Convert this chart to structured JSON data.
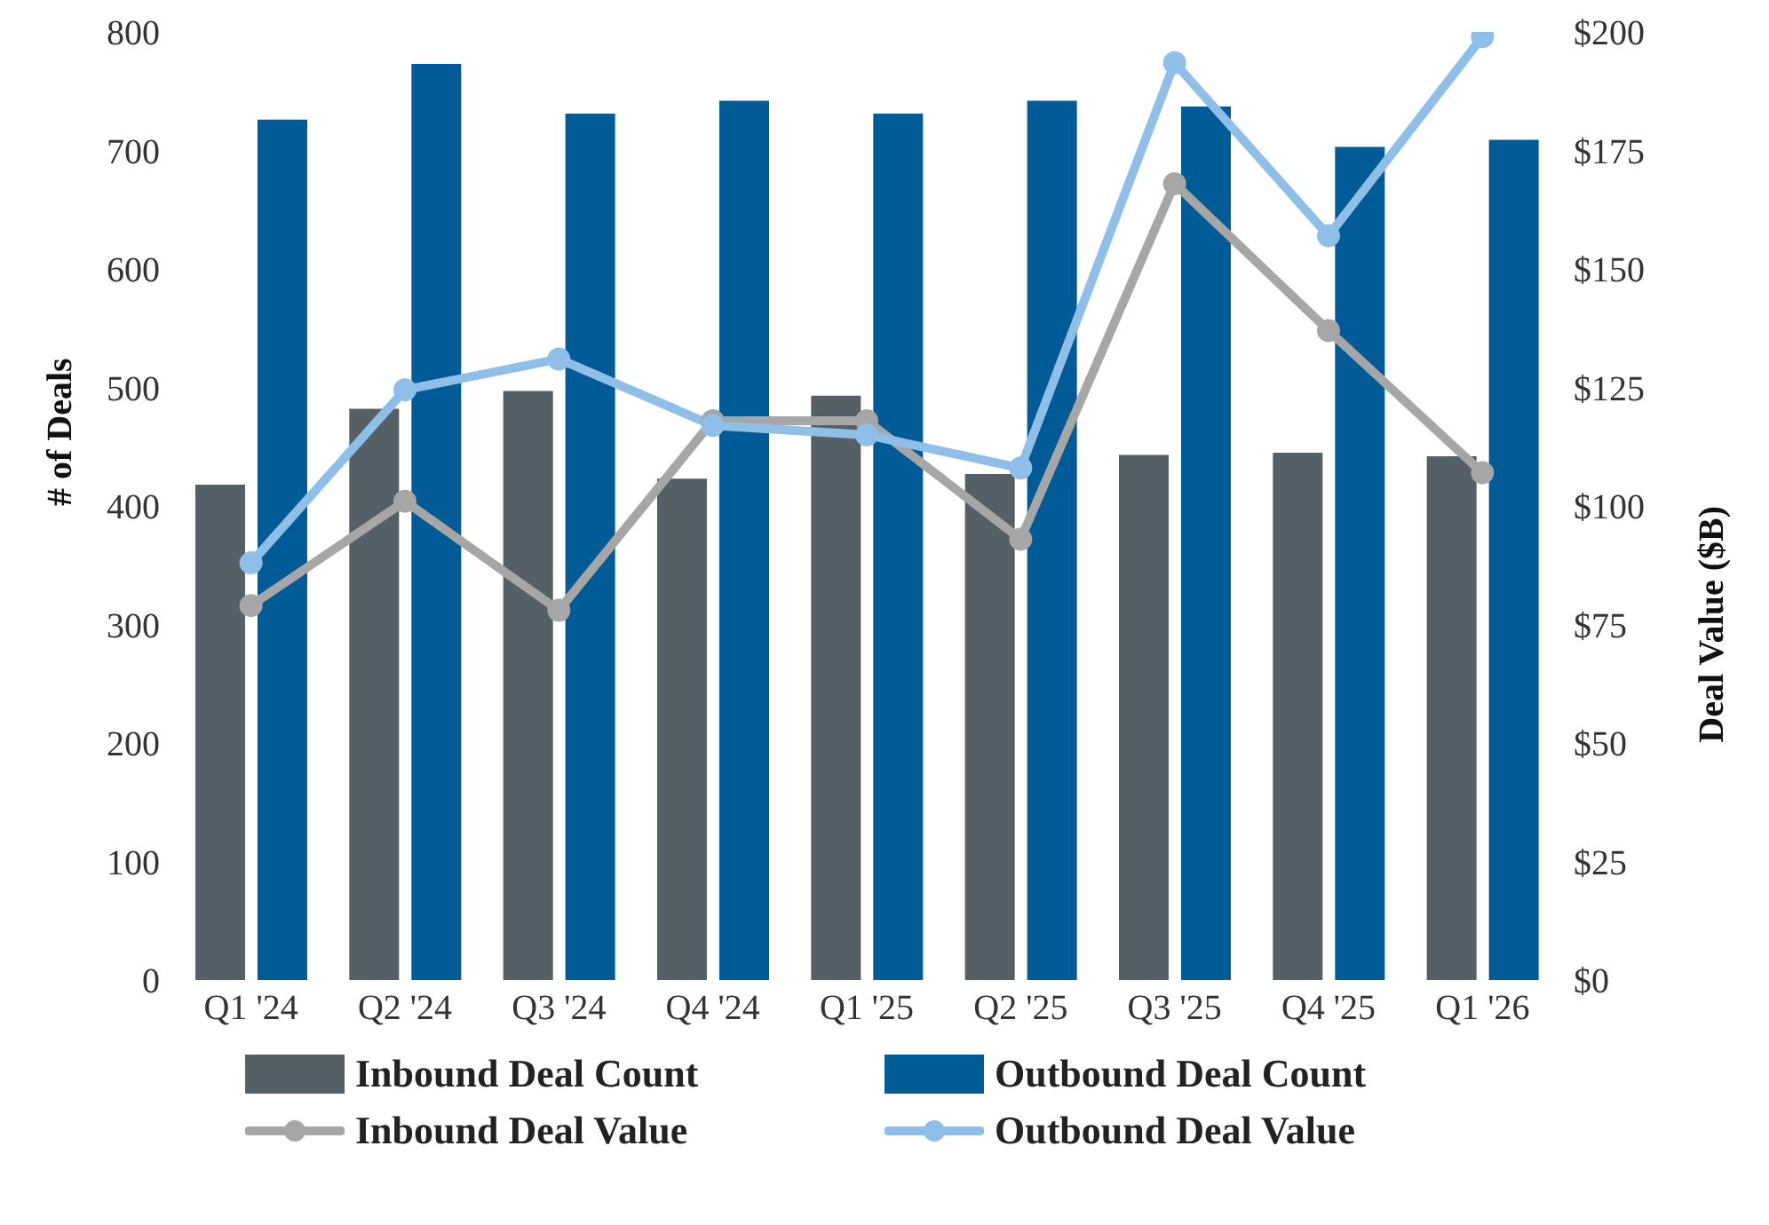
{
  "chart_data": {
    "type": "bar",
    "categories": [
      "Q1 '24",
      "Q2 '24",
      "Q3 '24",
      "Q4 '24",
      "Q1 '25",
      "Q2 '25",
      "Q3 '25",
      "Q4 '25",
      "Q1 '26"
    ],
    "series": [
      {
        "name": "Inbound Deal Count",
        "color": "#545f66",
        "values": [
          418,
          482,
          497,
          423,
          493,
          427,
          443,
          445,
          442
        ]
      },
      {
        "name": "Outbound Deal Count",
        "color": "#005b96",
        "values": [
          726,
          773,
          731,
          742,
          731,
          742,
          737,
          703,
          709
        ]
      },
      {
        "name": "Inbound Deal Value",
        "type": "line",
        "axis": "y2",
        "color": "#a6a6a6",
        "marker": "circle",
        "values": [
          79,
          101,
          78,
          118,
          118,
          93,
          168,
          137,
          107
        ]
      },
      {
        "name": "Outbound Deal Value",
        "type": "line",
        "axis": "y2",
        "color": "#8fbfe8",
        "marker": "circle",
        "values": [
          88,
          124.5,
          131,
          117,
          115,
          108,
          193.5,
          157,
          199
        ]
      }
    ],
    "ylabel": "# of Deals",
    "y2label": "Deal Value ($B)",
    "ylim": [
      0,
      800
    ],
    "yticks": [
      0,
      100,
      200,
      300,
      400,
      500,
      600,
      700,
      800
    ],
    "y2lim": [
      0,
      200
    ],
    "y2ticks": [
      {
        "value": 0,
        "label": "$0"
      },
      {
        "value": 25,
        "label": "$25"
      },
      {
        "value": 50,
        "label": "$50"
      },
      {
        "value": 75,
        "label": "$75"
      },
      {
        "value": 100,
        "label": "$100"
      },
      {
        "value": 125,
        "label": "$125"
      },
      {
        "value": 150,
        "label": "$150"
      },
      {
        "value": 175,
        "label": "$175"
      },
      {
        "value": 200,
        "label": "$200"
      }
    ],
    "grid": false,
    "legend": "bottom"
  }
}
